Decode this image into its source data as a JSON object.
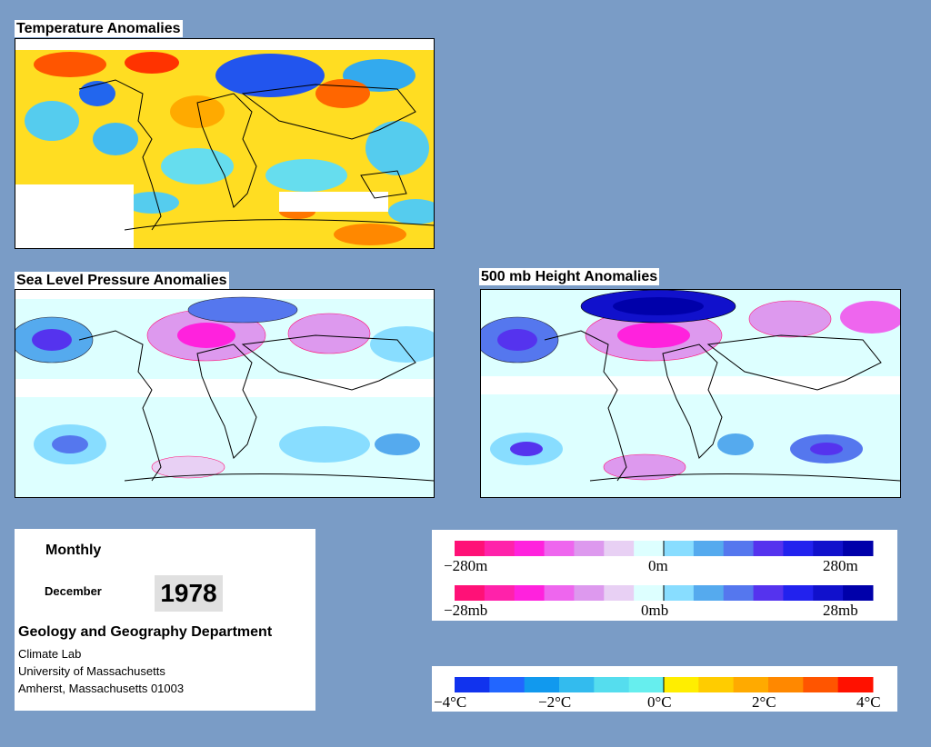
{
  "panels": {
    "temperature": {
      "title": "Temperature Anomalies",
      "icon": "temperature-anomaly-map"
    },
    "slp": {
      "title": "Sea Level Pressure Anomalies",
      "icon": "sea-level-pressure-anomaly-map"
    },
    "height500": {
      "title": "500 mb Height Anomalies",
      "icon": "height-500mb-anomaly-map"
    }
  },
  "info": {
    "period": "Monthly",
    "month": "December",
    "year": "1978",
    "department": "Geology and Geography Department",
    "lab": "Climate Lab",
    "university": "University of Massachusetts",
    "address": "Amherst, Massachusetts 01003"
  },
  "legend_height": {
    "min": "−280m",
    "mid": "0m",
    "max": "280m"
  },
  "legend_pressure": {
    "min": "−28mb",
    "mid": "0mb",
    "max": "28mb"
  },
  "legend_temperature": {
    "t0": "−4°C",
    "t1": "−2°C",
    "t2": "0°C",
    "t3": "2°C",
    "t4": "4°C"
  },
  "colors": {
    "background": "#7a9cc6",
    "anomaly_scale": [
      "#ff1177",
      "#ff22aa",
      "#ff22dd",
      "#ee66ee",
      "#dd99ee",
      "#e8d0f4",
      "#ddffff",
      "#88ddff",
      "#55aaee",
      "#5577ee",
      "#5533ee",
      "#2222ee",
      "#1111cc",
      "#0000aa"
    ],
    "temperature_scale": [
      "#1133ee",
      "#2266ff",
      "#1199ee",
      "#33bbee",
      "#55ddee",
      "#66eeee",
      "#ffee00",
      "#ffcc00",
      "#ffaa00",
      "#ff8800",
      "#ff5500",
      "#ff1100"
    ]
  }
}
